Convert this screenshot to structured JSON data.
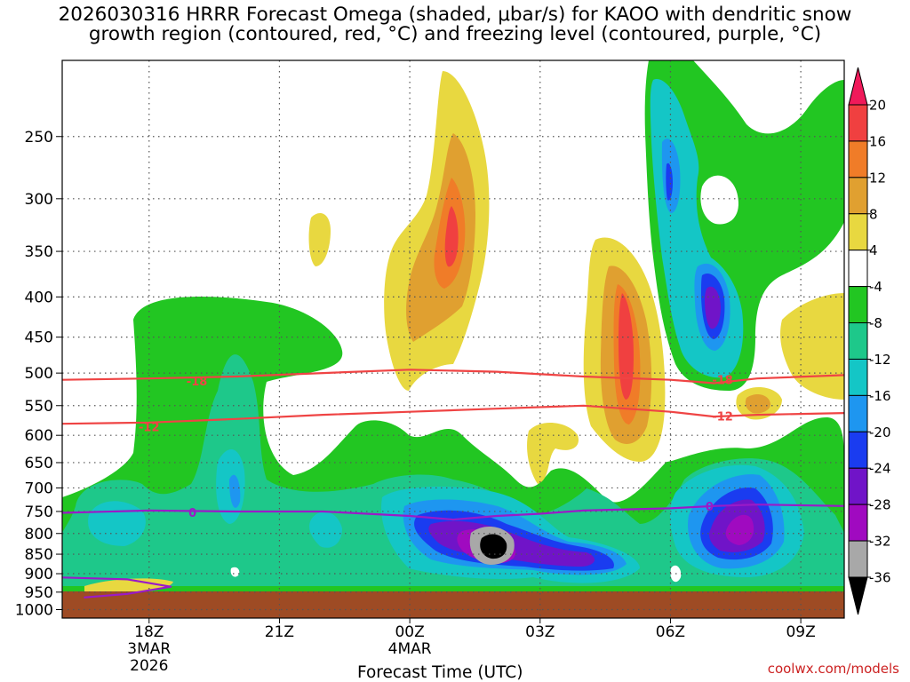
{
  "title_line1": "2026030316 HRRR Forecast Omega (shaded, μbar/s) for KAOO with dendritic snow",
  "title_line2": "growth region (contoured, red, °C) and freezing level (contoured, purple, °C)",
  "credit": "coolwx.com/models",
  "chart_data": {
    "type": "heatmap",
    "xlabel": "Forecast Time (UTC)",
    "ylabel": "",
    "y_ticks": [
      250,
      300,
      350,
      400,
      450,
      500,
      550,
      600,
      650,
      700,
      750,
      800,
      850,
      900,
      950,
      1000
    ],
    "y_scale": "log-pressure",
    "ylim": [
      1025,
      200
    ],
    "x_ticks": [
      {
        "hour": 18,
        "lines": [
          "18Z",
          "3MAR",
          "2026"
        ]
      },
      {
        "hour": 21,
        "lines": [
          "21Z"
        ]
      },
      {
        "hour": 24,
        "lines": [
          "00Z",
          "4MAR"
        ]
      },
      {
        "hour": 27,
        "lines": [
          "03Z"
        ]
      },
      {
        "hour": 30,
        "lines": [
          "06Z"
        ]
      },
      {
        "hour": 33,
        "lines": [
          "09Z"
        ]
      }
    ],
    "xlim": [
      16,
      34
    ],
    "grid": true,
    "colorbar": {
      "labels": [
        "20",
        "16",
        "12",
        "8",
        "4",
        "-4",
        "-8",
        "-12",
        "-16",
        "-20",
        "-24",
        "-28",
        "-32",
        "-36"
      ],
      "colors": [
        "#f01a5a",
        "#f04040",
        "#f07c28",
        "#e0a030",
        "#e8d840",
        "#ffffff",
        "#22c622",
        "#1ec88a",
        "#14c6c6",
        "#1e96f0",
        "#1a3cf0",
        "#7014c8",
        "#a00ac0",
        "#a8a8a8",
        "#000000"
      ]
    },
    "contours": [
      {
        "label": "-18",
        "color": "#ef4444",
        "points": [
          [
            16,
            510
          ],
          [
            18,
            508
          ],
          [
            20,
            505
          ],
          [
            22,
            500
          ],
          [
            24,
            495
          ],
          [
            26,
            498
          ],
          [
            28,
            505
          ],
          [
            30,
            510
          ],
          [
            31,
            515
          ],
          [
            32,
            508
          ],
          [
            34,
            503
          ]
        ],
        "label_at": [
          19.1,
          512
        ]
      },
      {
        "label": "-12",
        "color": "#ef4444",
        "points": [
          [
            16,
            580
          ],
          [
            18,
            578
          ],
          [
            20,
            572
          ],
          [
            22,
            565
          ],
          [
            24,
            560
          ],
          [
            26,
            555
          ],
          [
            28,
            550
          ],
          [
            30,
            560
          ],
          [
            31,
            568
          ],
          [
            32,
            565
          ],
          [
            34,
            562
          ]
        ],
        "label_at": [
          18.0,
          585
        ]
      },
      {
        "label": "-18",
        "color": "#ef4444",
        "points": [],
        "label_at": [
          31.2,
          510
        ]
      },
      {
        "label": "-12",
        "color": "#ef4444",
        "points": [],
        "label_at": [
          31.2,
          567
        ]
      },
      {
        "label": "0",
        "color": "#9a1ac8",
        "points": [
          [
            16,
            753
          ],
          [
            18,
            748
          ],
          [
            20,
            750
          ],
          [
            22,
            750
          ],
          [
            24,
            760
          ],
          [
            25,
            768
          ],
          [
            26,
            760
          ],
          [
            27,
            755
          ],
          [
            28,
            748
          ],
          [
            30,
            743
          ],
          [
            31,
            738
          ],
          [
            32,
            735
          ],
          [
            34,
            738
          ]
        ],
        "label_at": [
          19.0,
          752
        ]
      },
      {
        "label": "0",
        "color": "#9a1ac8",
        "points": [],
        "label_at": [
          30.9,
          738
        ]
      },
      {
        "label": "",
        "color": "#9a1ac8",
        "points": [
          [
            16,
            910
          ],
          [
            17.5,
            915
          ],
          [
            18.5,
            935
          ],
          [
            17.5,
            955
          ],
          [
            16.5,
            965
          ]
        ],
        "label_at": null
      }
    ],
    "shaded_regions": [
      {
        "omega": "-8",
        "color": "#22c622",
        "region": "low-level band 700-950 hPa, 16.5Z-34Z"
      },
      {
        "omega": "-12",
        "color": "#1ec88a",
        "region": "low-level band"
      },
      {
        "omega": "-24",
        "color": "#7014c8",
        "region": "850 hPa near 01Z-02Z"
      },
      {
        "omega": "-36",
        "color": "#000000",
        "region": "850 hPa near 02Z"
      },
      {
        "omega": "16",
        "color": "#f04040",
        "region": "350 hPa near 01Z"
      },
      {
        "omega": "16",
        "color": "#f04040",
        "region": "450 hPa near 05Z"
      }
    ]
  }
}
